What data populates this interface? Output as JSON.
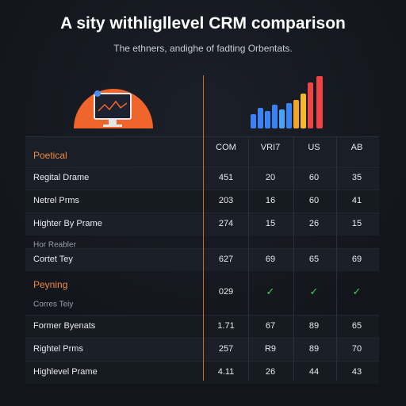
{
  "header": {
    "title": "A sity withligllevel CRM comparison",
    "subtitle": "The ethners, andighe of fadting Orbentats."
  },
  "table": {
    "columns": [
      "COM",
      "VRI7",
      "US",
      "AB"
    ],
    "rows": [
      {
        "heading": "Poetical"
      },
      {
        "label": "Regital Drame",
        "values": [
          451,
          20,
          60,
          35
        ]
      },
      {
        "label": "Netrel Prms",
        "values": [
          203,
          16,
          60,
          41
        ]
      },
      {
        "label": "Highter By Prame",
        "values": [
          274,
          15,
          26,
          15
        ]
      },
      {
        "note": "Hor Reabler"
      },
      {
        "label": "Cortet Tey",
        "values": [
          627,
          69,
          65,
          69
        ]
      },
      {
        "heading": "Peyning",
        "values": [
          "029",
          "✓",
          "✓",
          "✓"
        ]
      },
      {
        "note": "Corres Teiy"
      },
      {
        "label": "Former Byenats",
        "values": [
          1.71,
          67,
          89,
          65
        ]
      },
      {
        "label": "Rightel Prms",
        "values": [
          257,
          "R9",
          89,
          70
        ]
      },
      {
        "label": "Highlevel Prame",
        "values": [
          4.11,
          26,
          44,
          43
        ]
      }
    ]
  }
}
